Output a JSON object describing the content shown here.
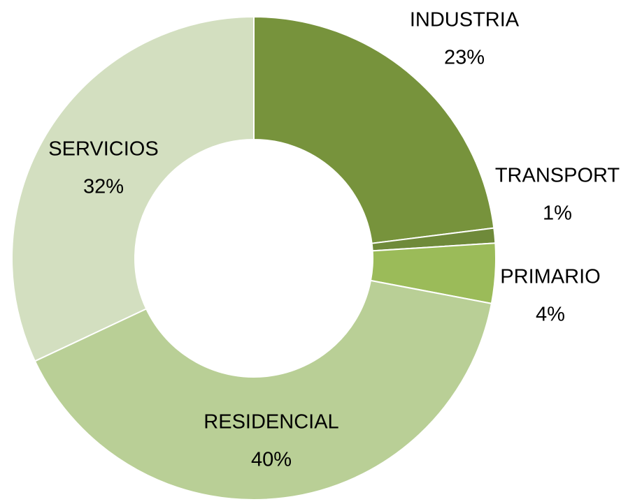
{
  "chart_data": {
    "type": "donut",
    "categories": [
      "INDUSTRIA",
      "TRANSPORT",
      "PRIMARIO",
      "RESIDENCIAL",
      "SERVICIOS"
    ],
    "values": [
      23,
      1,
      4,
      40,
      32
    ],
    "value_labels": [
      "23%",
      "1%",
      "4%",
      "40%",
      "32%"
    ],
    "colors": [
      "#77933c",
      "#6f8a3a",
      "#9bbb59",
      "#b9cf96",
      "#d3dfc0"
    ]
  }
}
